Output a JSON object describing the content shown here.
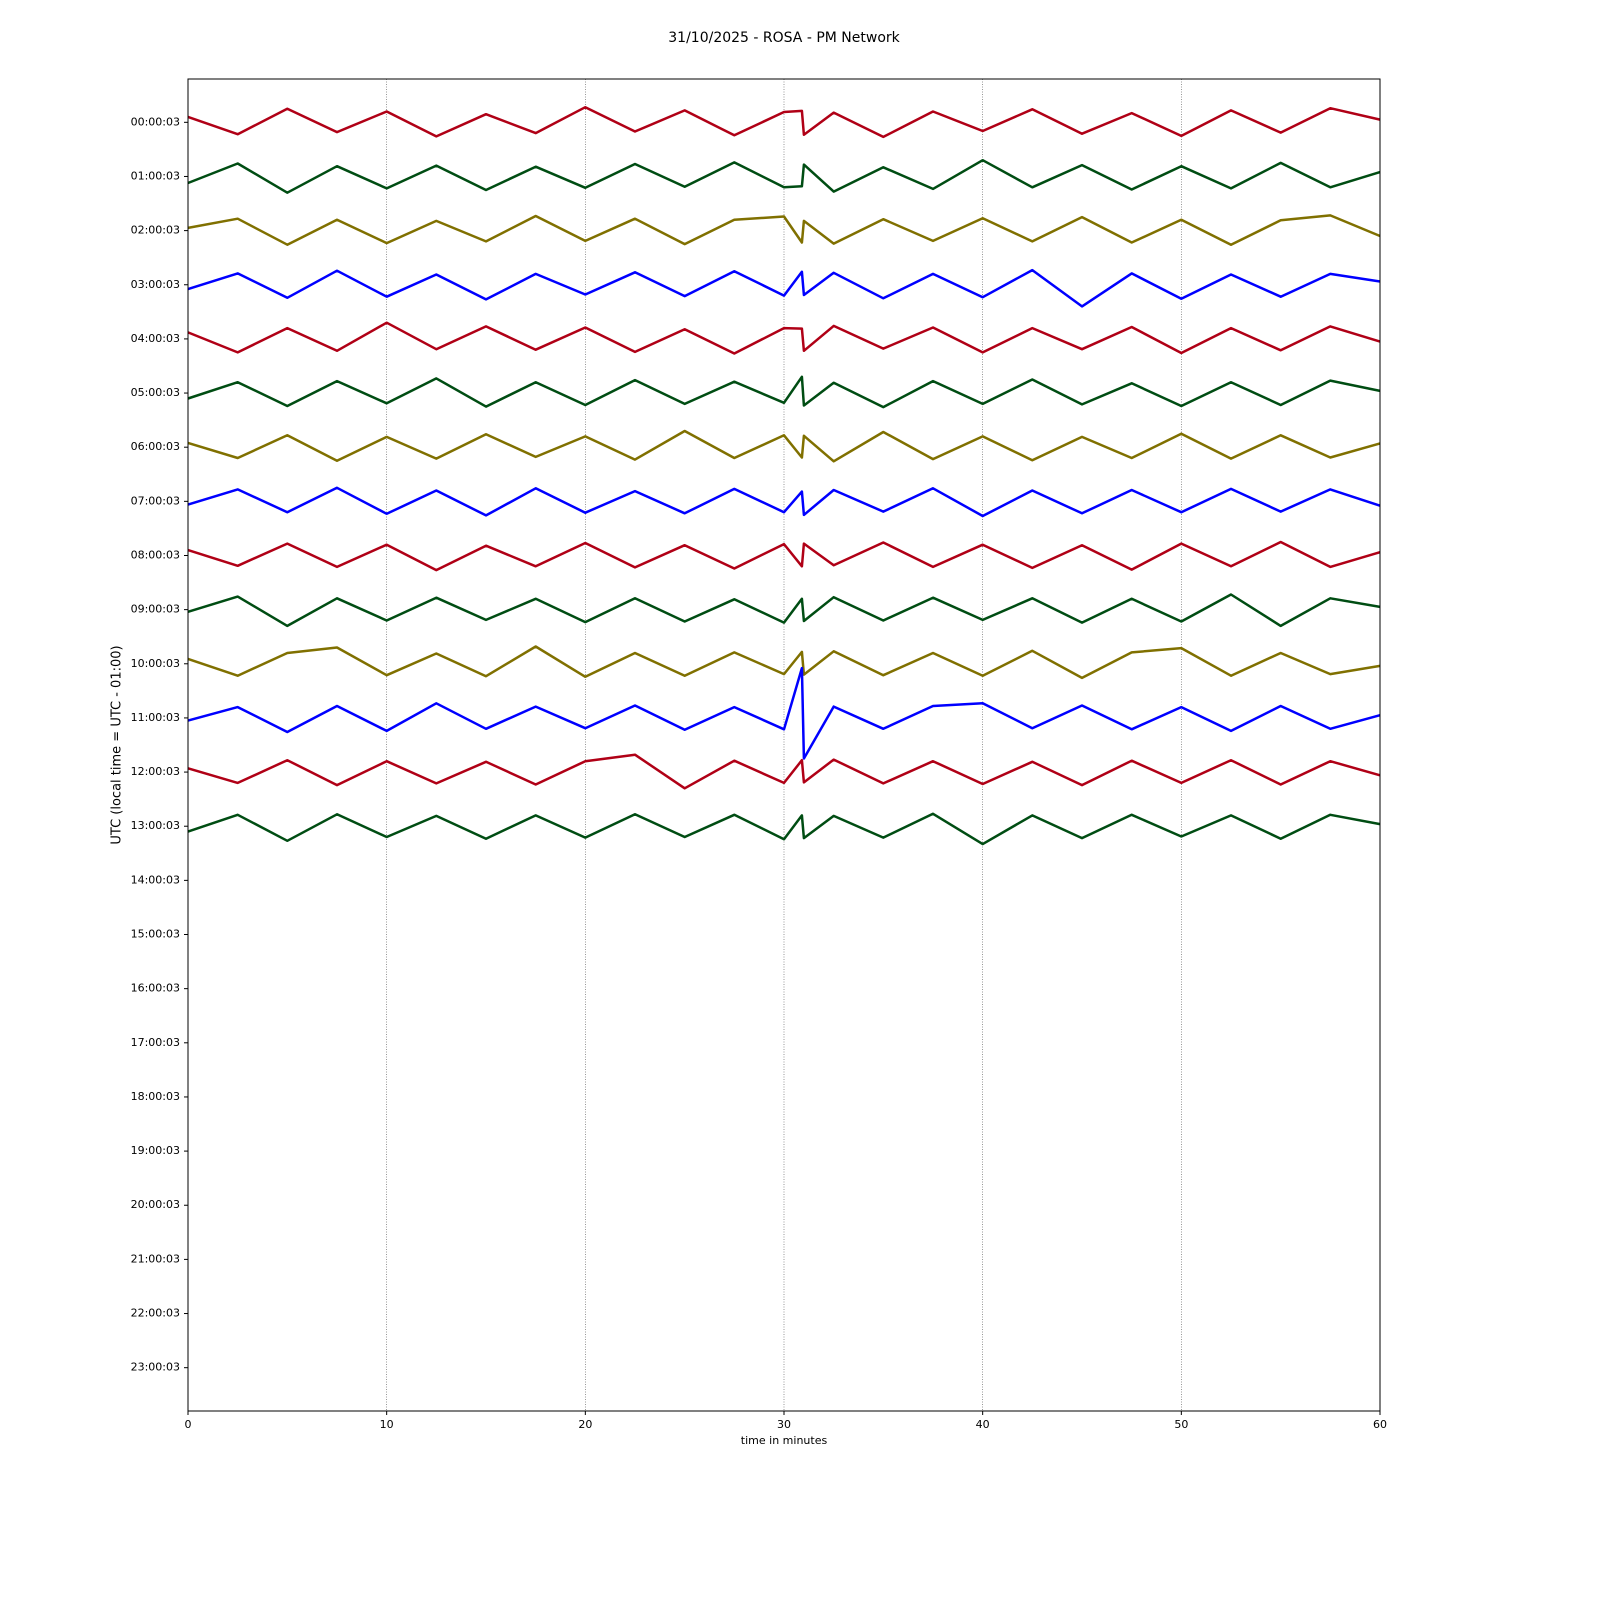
{
  "chart_data": {
    "type": "line",
    "title": "31/10/2025 - ROSA - PM Network",
    "x_label": "time in minutes",
    "y_label": "UTC (local time = UTC - 01:00)",
    "xlim": [
      0,
      60
    ],
    "xticks": [
      0,
      10,
      20,
      30,
      40,
      50,
      60
    ],
    "grid": true,
    "ylim": [
      -0.8,
      23.8
    ],
    "yticks": [
      {
        "value": 0,
        "label": "00:00:03"
      },
      {
        "value": 1,
        "label": "01:00:03"
      },
      {
        "value": 2,
        "label": "02:00:03"
      },
      {
        "value": 3,
        "label": "03:00:03"
      },
      {
        "value": 4,
        "label": "04:00:03"
      },
      {
        "value": 5,
        "label": "05:00:03"
      },
      {
        "value": 6,
        "label": "06:00:03"
      },
      {
        "value": 7,
        "label": "07:00:03"
      },
      {
        "value": 8,
        "label": "08:00:03"
      },
      {
        "value": 9,
        "label": "09:00:03"
      },
      {
        "value": 10,
        "label": "10:00:03"
      },
      {
        "value": 11,
        "label": "11:00:03"
      },
      {
        "value": 12,
        "label": "12:00:03"
      },
      {
        "value": 13,
        "label": "13:00:03"
      },
      {
        "value": 14,
        "label": "14:00:03"
      },
      {
        "value": 15,
        "label": "15:00:03"
      },
      {
        "value": 16,
        "label": "16:00:03"
      },
      {
        "value": 17,
        "label": "17:00:03"
      },
      {
        "value": 18,
        "label": "18:00:03"
      },
      {
        "value": 19,
        "label": "19:00:03"
      },
      {
        "value": 20,
        "label": "20:00:03"
      },
      {
        "value": 21,
        "label": "21:00:03"
      },
      {
        "value": 22,
        "label": "22:00:03"
      },
      {
        "value": 23,
        "label": "23:00:03"
      }
    ],
    "x": [
      0,
      2.5,
      5,
      7.5,
      10,
      12.5,
      15,
      17.5,
      20,
      22.5,
      25,
      27.5,
      30,
      30.9,
      31,
      32.5,
      35,
      37.5,
      40,
      42.5,
      45,
      47.5,
      50,
      52.5,
      55,
      57.5,
      60
    ],
    "series": [
      {
        "color": "#b00016",
        "values": [
          0.1,
          -0.22,
          0.25,
          -0.18,
          0.2,
          -0.26,
          0.15,
          -0.2,
          0.28,
          -0.17,
          0.22,
          -0.24,
          0.19,
          0.21,
          -0.23,
          0.18,
          -0.27,
          0.2,
          -0.16,
          0.24,
          -0.21,
          0.17,
          -0.25,
          0.22,
          -0.19,
          0.26,
          0.05
        ]
      },
      {
        "color": "#004d13",
        "values": [
          -0.12,
          0.24,
          -0.3,
          0.19,
          -0.22,
          0.2,
          -0.25,
          0.18,
          -0.21,
          0.23,
          -0.19,
          0.26,
          -0.2,
          -0.18,
          0.22,
          -0.28,
          0.17,
          -0.23,
          0.3,
          -0.2,
          0.21,
          -0.24,
          0.19,
          -0.22,
          0.25,
          -0.2,
          0.08
        ]
      },
      {
        "color": "#807000",
        "values": [
          0.05,
          0.22,
          -0.26,
          0.2,
          -0.23,
          0.18,
          -0.2,
          0.27,
          -0.19,
          0.22,
          -0.25,
          0.2,
          0.26,
          -0.22,
          0.18,
          -0.24,
          0.21,
          -0.19,
          0.23,
          -0.2,
          0.25,
          -0.22,
          0.2,
          -0.26,
          0.19,
          0.28,
          -0.1
        ]
      },
      {
        "color": "#0000ff",
        "values": [
          -0.08,
          0.21,
          -0.24,
          0.26,
          -0.22,
          0.19,
          -0.27,
          0.2,
          -0.18,
          0.23,
          -0.21,
          0.25,
          -0.2,
          0.24,
          -0.19,
          0.22,
          -0.25,
          0.2,
          -0.23,
          0.27,
          -0.4,
          0.21,
          -0.26,
          0.19,
          -0.22,
          0.2,
          0.06
        ]
      },
      {
        "color": "#b00016",
        "values": [
          0.12,
          -0.25,
          0.2,
          -0.22,
          0.3,
          -0.19,
          0.23,
          -0.2,
          0.21,
          -0.24,
          0.18,
          -0.27,
          0.2,
          0.19,
          -0.22,
          0.24,
          -0.18,
          0.21,
          -0.25,
          0.2,
          -0.19,
          0.22,
          -0.26,
          0.2,
          -0.21,
          0.23,
          -0.05
        ]
      },
      {
        "color": "#004d13",
        "values": [
          -0.1,
          0.2,
          -0.24,
          0.22,
          -0.19,
          0.27,
          -0.25,
          0.2,
          -0.22,
          0.24,
          -0.2,
          0.21,
          -0.18,
          0.3,
          -0.23,
          0.19,
          -0.26,
          0.22,
          -0.2,
          0.25,
          -0.21,
          0.18,
          -0.24,
          0.2,
          -0.22,
          0.23,
          0.04
        ]
      },
      {
        "color": "#807000",
        "values": [
          0.08,
          -0.2,
          0.22,
          -0.25,
          0.19,
          -0.21,
          0.24,
          -0.18,
          0.2,
          -0.23,
          0.3,
          -0.2,
          0.22,
          -0.19,
          0.21,
          -0.26,
          0.28,
          -0.22,
          0.2,
          -0.24,
          0.19,
          -0.2,
          0.25,
          -0.21,
          0.22,
          -0.19,
          0.07
        ]
      },
      {
        "color": "#0000ff",
        "values": [
          -0.06,
          0.22,
          -0.2,
          0.25,
          -0.23,
          0.2,
          -0.26,
          0.24,
          -0.21,
          0.19,
          -0.22,
          0.23,
          -0.2,
          0.18,
          -0.25,
          0.21,
          -0.19,
          0.24,
          -0.27,
          0.2,
          -0.22,
          0.21,
          -0.2,
          0.23,
          -0.19,
          0.22,
          -0.08
        ]
      },
      {
        "color": "#b00016",
        "values": [
          0.1,
          -0.19,
          0.22,
          -0.21,
          0.2,
          -0.27,
          0.18,
          -0.2,
          0.23,
          -0.22,
          0.19,
          -0.24,
          0.21,
          -0.2,
          0.22,
          -0.18,
          0.24,
          -0.21,
          0.2,
          -0.23,
          0.19,
          -0.26,
          0.22,
          -0.2,
          0.25,
          -0.21,
          0.06
        ]
      },
      {
        "color": "#004d13",
        "values": [
          -0.04,
          0.24,
          -0.3,
          0.21,
          -0.2,
          0.22,
          -0.19,
          0.2,
          -0.23,
          0.21,
          -0.22,
          0.19,
          -0.24,
          0.2,
          -0.21,
          0.23,
          -0.2,
          0.22,
          -0.19,
          0.21,
          -0.24,
          0.2,
          -0.22,
          0.28,
          -0.3,
          0.21,
          0.05
        ]
      },
      {
        "color": "#807000",
        "values": [
          0.09,
          -0.22,
          0.2,
          0.3,
          -0.21,
          0.19,
          -0.23,
          0.32,
          -0.24,
          0.2,
          -0.22,
          0.21,
          -0.19,
          0.22,
          -0.2,
          0.23,
          -0.21,
          0.2,
          -0.22,
          0.24,
          -0.26,
          0.21,
          0.29,
          -0.22,
          0.2,
          -0.19,
          -0.04
        ]
      },
      {
        "color": "#0000ff",
        "values": [
          -0.05,
          0.2,
          -0.26,
          0.22,
          -0.24,
          0.27,
          -0.2,
          0.21,
          -0.19,
          0.23,
          -0.22,
          0.2,
          -0.21,
          0.92,
          -0.75,
          0.21,
          -0.2,
          0.22,
          0.27,
          -0.19,
          0.23,
          -0.21,
          0.2,
          -0.24,
          0.22,
          -0.2,
          0.05
        ]
      },
      {
        "color": "#b00016",
        "values": [
          0.07,
          -0.2,
          0.22,
          -0.24,
          0.2,
          -0.21,
          0.19,
          -0.23,
          0.2,
          0.32,
          -0.3,
          0.21,
          -0.2,
          0.22,
          -0.19,
          0.23,
          -0.21,
          0.2,
          -0.22,
          0.19,
          -0.24,
          0.21,
          -0.2,
          0.22,
          -0.23,
          0.2,
          -0.06
        ]
      },
      {
        "color": "#004d13",
        "values": [
          -0.1,
          0.21,
          -0.27,
          0.22,
          -0.2,
          0.19,
          -0.23,
          0.2,
          -0.21,
          0.22,
          -0.2,
          0.21,
          -0.24,
          0.2,
          -0.22,
          0.19,
          -0.21,
          0.23,
          -0.33,
          0.2,
          -0.22,
          0.21,
          -0.19,
          0.2,
          -0.23,
          0.21,
          0.04
        ]
      }
    ]
  }
}
